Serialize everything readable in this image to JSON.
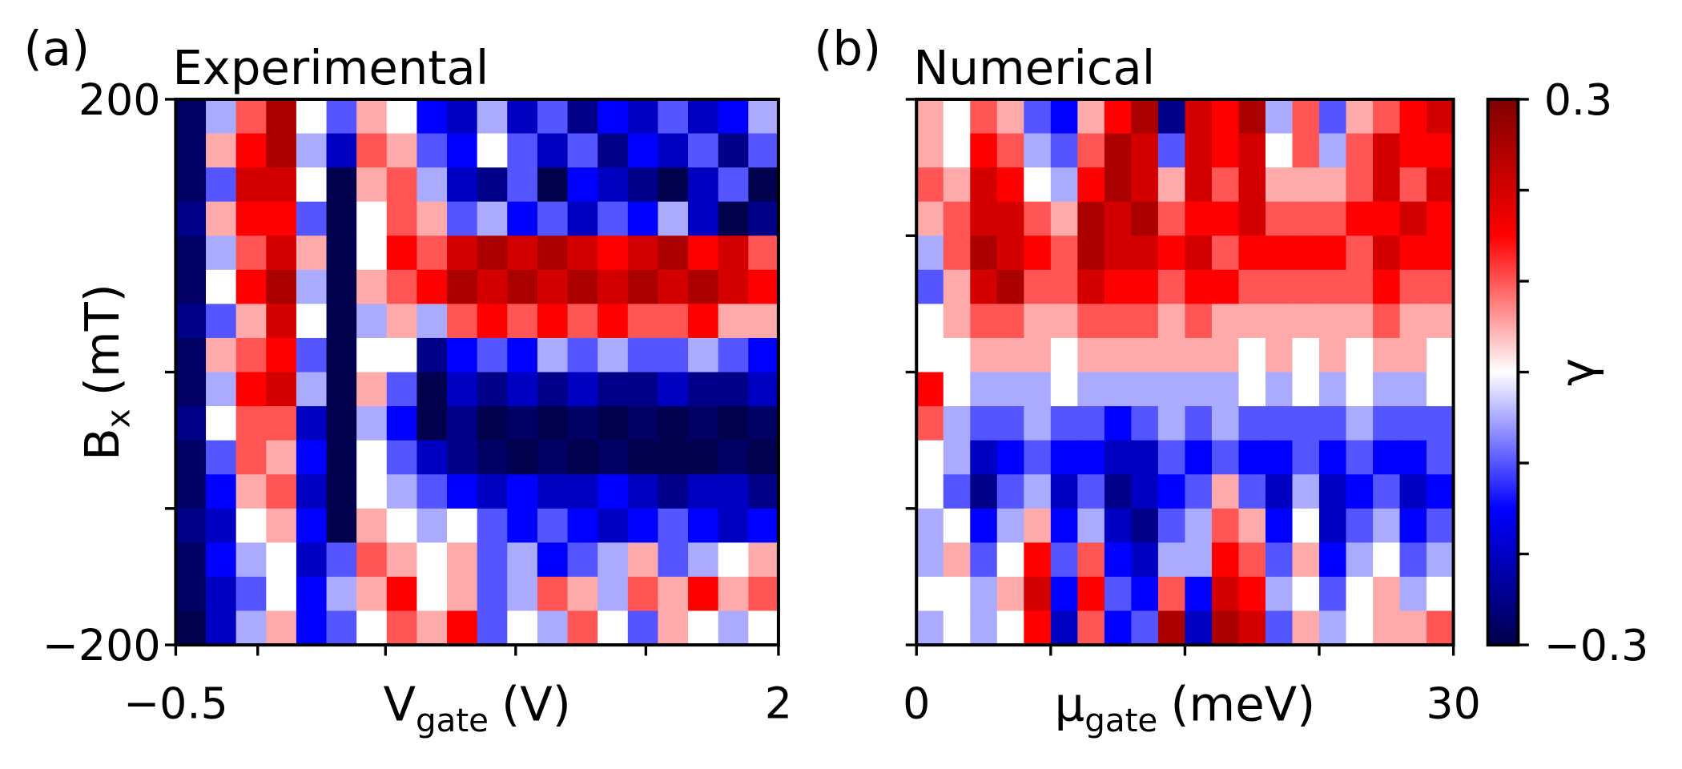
{
  "chart_data": [
    {
      "type": "heatmap",
      "panel_label": "(a)",
      "title": "Experimental",
      "colormap": "seismic",
      "zlim": [
        -0.3,
        0.3
      ],
      "xlabel": {
        "main": "V",
        "sub": "gate",
        "unit": "(V)"
      },
      "ylabel": {
        "main": "B",
        "sub": "x",
        "unit": "(mT)"
      },
      "xlim": [
        -0.5,
        2
      ],
      "ylim": [
        -200,
        200
      ],
      "xticks": [
        {
          "value": -0.5,
          "label": "−0.5"
        },
        2
      ],
      "xminorticks": [
        -0.16,
        0.37,
        0.91,
        1.45
      ],
      "yticks": [
        {
          "value": -200,
          "label": "−200"
        },
        200
      ],
      "yminorticks": [
        -100,
        0
      ],
      "z": [
        [
          -0.28,
          -0.05,
          0.1,
          0.25,
          0.0,
          -0.1,
          0.05,
          0.0,
          -0.15,
          -0.2,
          -0.05,
          -0.2,
          -0.1,
          -0.25,
          -0.15,
          -0.2,
          -0.1,
          -0.2,
          -0.15,
          -0.05
        ],
        [
          -0.28,
          0.05,
          0.15,
          0.25,
          -0.05,
          -0.2,
          0.1,
          0.05,
          -0.1,
          -0.15,
          0.0,
          -0.1,
          -0.2,
          -0.1,
          -0.25,
          -0.15,
          -0.2,
          -0.1,
          -0.25,
          -0.1
        ],
        [
          -0.28,
          -0.1,
          0.2,
          0.2,
          0.0,
          -0.3,
          0.05,
          0.1,
          -0.05,
          -0.2,
          -0.25,
          -0.1,
          -0.3,
          -0.15,
          -0.2,
          -0.25,
          -0.3,
          -0.2,
          -0.1,
          -0.3
        ],
        [
          -0.25,
          0.05,
          0.15,
          0.15,
          -0.1,
          -0.3,
          0.0,
          0.1,
          0.05,
          -0.1,
          -0.05,
          -0.15,
          -0.1,
          -0.2,
          -0.1,
          -0.15,
          -0.05,
          -0.2,
          -0.3,
          -0.25
        ],
        [
          -0.28,
          -0.05,
          0.1,
          0.2,
          0.05,
          -0.3,
          0.0,
          0.15,
          0.1,
          0.2,
          0.25,
          0.2,
          0.25,
          0.2,
          0.15,
          0.2,
          0.25,
          0.15,
          0.2,
          0.1
        ],
        [
          -0.28,
          0.0,
          0.15,
          0.25,
          -0.05,
          -0.3,
          0.05,
          0.1,
          0.15,
          0.25,
          0.2,
          0.25,
          0.2,
          0.25,
          0.2,
          0.25,
          0.2,
          0.25,
          0.2,
          0.15
        ],
        [
          -0.25,
          -0.1,
          0.05,
          0.2,
          0.0,
          -0.3,
          -0.05,
          0.05,
          -0.05,
          0.1,
          0.15,
          0.1,
          0.15,
          0.1,
          0.15,
          0.1,
          0.1,
          0.15,
          0.05,
          0.05
        ],
        [
          -0.28,
          0.05,
          0.1,
          0.15,
          -0.1,
          -0.3,
          0.0,
          0.0,
          -0.25,
          -0.15,
          -0.1,
          -0.15,
          -0.05,
          -0.1,
          -0.05,
          -0.1,
          -0.1,
          -0.05,
          -0.1,
          -0.15
        ],
        [
          -0.28,
          -0.05,
          0.15,
          0.2,
          -0.05,
          -0.3,
          0.05,
          -0.1,
          -0.3,
          -0.2,
          -0.25,
          -0.2,
          -0.25,
          -0.2,
          -0.25,
          -0.25,
          -0.2,
          -0.25,
          -0.25,
          -0.2
        ],
        [
          -0.25,
          0.0,
          0.1,
          0.1,
          -0.2,
          -0.3,
          -0.05,
          -0.15,
          -0.3,
          -0.25,
          -0.3,
          -0.28,
          -0.3,
          -0.28,
          -0.3,
          -0.28,
          -0.3,
          -0.28,
          -0.3,
          -0.28
        ],
        [
          -0.28,
          -0.1,
          0.1,
          0.05,
          -0.15,
          -0.3,
          0.0,
          -0.1,
          -0.2,
          -0.25,
          -0.28,
          -0.3,
          -0.28,
          -0.3,
          -0.28,
          -0.3,
          -0.3,
          -0.3,
          -0.28,
          -0.3
        ],
        [
          -0.28,
          -0.15,
          0.05,
          0.1,
          -0.2,
          -0.3,
          0.0,
          -0.05,
          -0.1,
          -0.15,
          -0.2,
          -0.15,
          -0.2,
          -0.2,
          -0.15,
          -0.2,
          -0.25,
          -0.2,
          -0.2,
          -0.25
        ],
        [
          -0.25,
          -0.2,
          0.0,
          0.05,
          -0.15,
          -0.3,
          0.05,
          0.0,
          -0.05,
          0.0,
          -0.1,
          -0.15,
          -0.1,
          -0.15,
          -0.2,
          -0.15,
          -0.1,
          -0.15,
          -0.2,
          -0.15
        ],
        [
          -0.28,
          -0.15,
          -0.05,
          0.0,
          -0.2,
          -0.1,
          0.1,
          0.05,
          0.0,
          0.05,
          -0.1,
          -0.05,
          -0.15,
          -0.1,
          -0.05,
          0.05,
          -0.1,
          -0.05,
          0.0,
          0.05
        ],
        [
          -0.28,
          -0.2,
          -0.1,
          0.0,
          -0.15,
          -0.05,
          0.05,
          0.15,
          0.0,
          0.05,
          -0.1,
          -0.05,
          0.1,
          0.05,
          -0.05,
          0.1,
          0.05,
          0.15,
          0.05,
          0.1
        ],
        [
          -0.3,
          -0.2,
          -0.05,
          0.05,
          -0.15,
          -0.1,
          0.0,
          0.1,
          0.05,
          0.15,
          -0.1,
          0.0,
          -0.05,
          0.1,
          0.0,
          -0.1,
          0.05,
          0.0,
          -0.05,
          0.0
        ]
      ]
    },
    {
      "type": "heatmap",
      "panel_label": "(b)",
      "title": "Numerical",
      "colormap": "seismic",
      "zlim": [
        -0.3,
        0.3
      ],
      "xlabel": {
        "main": "μ",
        "sub": "gate",
        "unit": "(meV)"
      },
      "xlim": [
        0,
        30
      ],
      "ylim": [
        -200,
        200
      ],
      "xticks": [
        0,
        30
      ],
      "xminorticks": [
        7.5,
        15,
        22.5
      ],
      "yticks": [],
      "yminorticks": [
        -200,
        -100,
        0,
        100,
        200
      ],
      "colorbar": {
        "label": "γ",
        "ticks": [
          {
            "value": -0.3,
            "label": "−0.3"
          },
          0.3
        ],
        "minorticks": [
          -0.2,
          -0.1,
          0,
          0.1,
          0.2
        ]
      },
      "z": [
        [
          0.05,
          0.0,
          0.1,
          0.05,
          -0.1,
          -0.15,
          0.05,
          0.15,
          0.25,
          -0.25,
          0.2,
          0.15,
          0.25,
          -0.05,
          0.1,
          -0.1,
          0.05,
          0.1,
          0.15,
          0.2
        ],
        [
          0.05,
          0.0,
          0.15,
          0.1,
          -0.05,
          -0.1,
          0.1,
          0.25,
          0.2,
          -0.1,
          0.2,
          0.15,
          0.2,
          0.0,
          0.1,
          -0.05,
          0.1,
          0.2,
          0.15,
          0.15
        ],
        [
          0.1,
          0.05,
          0.2,
          0.15,
          0.0,
          -0.05,
          0.15,
          0.25,
          0.2,
          0.05,
          0.2,
          0.1,
          0.2,
          0.05,
          0.05,
          0.05,
          0.1,
          0.2,
          0.1,
          0.2
        ],
        [
          0.05,
          0.1,
          0.2,
          0.2,
          0.1,
          0.05,
          0.25,
          0.2,
          0.25,
          0.1,
          0.15,
          0.15,
          0.2,
          0.1,
          0.1,
          0.1,
          0.15,
          0.15,
          0.2,
          0.15
        ],
        [
          -0.05,
          0.1,
          0.25,
          0.2,
          0.15,
          0.1,
          0.25,
          0.2,
          0.2,
          0.15,
          0.2,
          0.1,
          0.15,
          0.15,
          0.15,
          0.15,
          0.1,
          0.2,
          0.15,
          0.15
        ],
        [
          -0.1,
          0.05,
          0.2,
          0.25,
          0.1,
          0.1,
          0.2,
          0.15,
          0.15,
          0.1,
          0.15,
          0.15,
          0.1,
          0.1,
          0.1,
          0.1,
          0.1,
          0.15,
          0.1,
          0.1
        ],
        [
          0.0,
          0.05,
          0.1,
          0.1,
          0.05,
          0.05,
          0.1,
          0.1,
          0.1,
          0.05,
          0.1,
          0.05,
          0.05,
          0.05,
          0.05,
          0.05,
          0.05,
          0.1,
          0.05,
          0.05
        ],
        [
          0.0,
          0.0,
          0.05,
          0.05,
          0.05,
          0.0,
          0.05,
          0.05,
          0.05,
          0.05,
          0.05,
          0.05,
          0.0,
          0.05,
          0.0,
          0.05,
          0.0,
          0.05,
          0.05,
          0.0
        ],
        [
          0.15,
          0.0,
          -0.05,
          -0.05,
          -0.05,
          0.0,
          -0.05,
          -0.05,
          -0.05,
          -0.05,
          -0.05,
          -0.05,
          0.0,
          -0.05,
          0.0,
          -0.05,
          0.0,
          -0.05,
          -0.05,
          0.0
        ],
        [
          0.1,
          -0.05,
          -0.1,
          -0.1,
          -0.05,
          -0.1,
          -0.1,
          -0.15,
          -0.1,
          -0.05,
          -0.1,
          -0.05,
          -0.1,
          -0.1,
          -0.1,
          -0.1,
          -0.05,
          -0.1,
          -0.1,
          -0.1
        ],
        [
          0.0,
          -0.05,
          -0.2,
          -0.15,
          -0.1,
          -0.15,
          -0.15,
          -0.2,
          -0.2,
          -0.1,
          -0.15,
          -0.1,
          -0.15,
          -0.15,
          -0.1,
          -0.15,
          -0.1,
          -0.15,
          -0.15,
          -0.1
        ],
        [
          0.0,
          -0.1,
          -0.25,
          -0.1,
          -0.05,
          -0.2,
          -0.1,
          -0.25,
          -0.2,
          -0.15,
          -0.1,
          0.05,
          -0.1,
          -0.2,
          -0.05,
          -0.2,
          -0.15,
          -0.1,
          -0.2,
          -0.15
        ],
        [
          -0.05,
          0.0,
          -0.15,
          -0.05,
          0.05,
          -0.15,
          -0.05,
          -0.2,
          -0.25,
          -0.1,
          -0.05,
          0.1,
          0.05,
          -0.15,
          0.0,
          -0.2,
          -0.1,
          -0.05,
          -0.15,
          -0.1
        ],
        [
          -0.05,
          0.05,
          -0.1,
          0.0,
          0.15,
          -0.1,
          0.1,
          -0.15,
          -0.2,
          -0.05,
          -0.05,
          0.15,
          0.1,
          -0.1,
          0.05,
          -0.15,
          -0.05,
          0.0,
          -0.1,
          -0.05
        ],
        [
          0.0,
          0.0,
          -0.05,
          0.05,
          0.2,
          -0.15,
          0.15,
          -0.1,
          -0.15,
          0.1,
          -0.15,
          0.2,
          0.15,
          -0.05,
          0.0,
          -0.1,
          0.0,
          0.05,
          -0.05,
          0.0
        ],
        [
          -0.05,
          0.0,
          -0.05,
          0.0,
          0.15,
          -0.2,
          0.1,
          -0.15,
          -0.1,
          0.25,
          -0.2,
          0.25,
          0.2,
          -0.1,
          0.05,
          -0.05,
          0.0,
          0.05,
          0.05,
          0.1
        ]
      ]
    }
  ]
}
